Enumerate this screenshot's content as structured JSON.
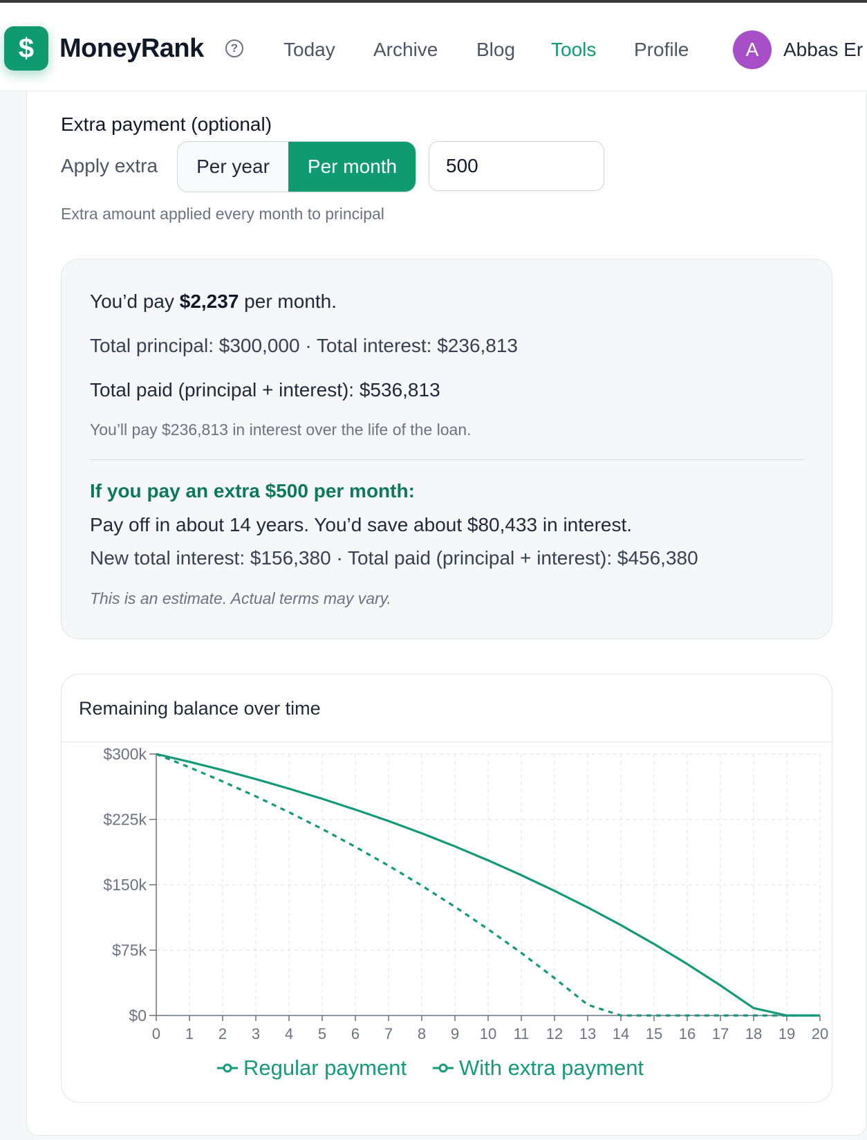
{
  "nav": {
    "brand": "MoneyRank",
    "logo_glyph": "$",
    "help_glyph": "?",
    "items": [
      {
        "label": "Today",
        "active": false
      },
      {
        "label": "Archive",
        "active": false
      },
      {
        "label": "Blog",
        "active": false
      },
      {
        "label": "Tools",
        "active": true
      },
      {
        "label": "Profile",
        "active": false
      }
    ],
    "avatar_initial": "A",
    "user_name": "Abbas Er",
    "accent_color": "#0f9b6e",
    "avatar_color": "#a64fc7"
  },
  "extra_payment": {
    "section_label": "Extra payment (optional)",
    "apply_label": "Apply extra",
    "per_year_label": "Per year",
    "per_month_label": "Per month",
    "selected": "Per month",
    "amount_value": "500",
    "hint": "Extra amount applied every month to principal"
  },
  "results": {
    "monthly_prefix": "You’d pay ",
    "monthly_amount": "$2,237",
    "monthly_suffix": " per month.",
    "totals_line": "Total principal: $300,000 · Total interest: $236,813",
    "total_paid_line": "Total paid (principal + interest): $536,813",
    "interest_note": "You’ll pay $236,813 in interest over the life of the loan.",
    "extra_heading": "If you pay an extra $500 per month:",
    "payoff_line": "Pay off in about 14 years. You’d save about $80,433 in interest.",
    "new_total_line": "New total interest: $156,380 · Total paid (principal + interest): $456,380",
    "estimate_note": "This is an estimate. Actual terms may vary."
  },
  "chart_card": {
    "title": "Remaining balance over time"
  },
  "chart_data": {
    "type": "line",
    "title": "Remaining balance over time",
    "xlabel": "",
    "ylabel": "",
    "x": [
      0,
      1,
      2,
      3,
      4,
      5,
      6,
      7,
      8,
      9,
      10,
      11,
      12,
      13,
      14,
      15,
      16,
      17,
      18,
      19,
      20
    ],
    "xlim": [
      0,
      20
    ],
    "ylim": [
      0,
      300000
    ],
    "y_ticks": [
      0,
      75000,
      150000,
      225000,
      300000
    ],
    "y_tick_labels": [
      "$0",
      "$75k",
      "$150k",
      "$225k",
      "$300k"
    ],
    "grid": true,
    "legend_position": "bottom",
    "series": [
      {
        "name": "Regular payment",
        "style": "solid",
        "color": "#149a7b",
        "values": [
          300000,
          291000,
          281500,
          271200,
          260200,
          248600,
          236200,
          223100,
          209000,
          194000,
          178000,
          161000,
          143000,
          124000,
          103700,
          82000,
          59000,
          34500,
          8500,
          0,
          0
        ]
      },
      {
        "name": "With extra payment",
        "style": "dashed",
        "color": "#149a7b",
        "values": [
          300000,
          284700,
          268500,
          251400,
          233200,
          214000,
          193500,
          171900,
          149000,
          124700,
          99000,
          71800,
          42900,
          12300,
          0,
          0,
          0,
          0,
          0,
          0,
          0
        ]
      }
    ]
  }
}
